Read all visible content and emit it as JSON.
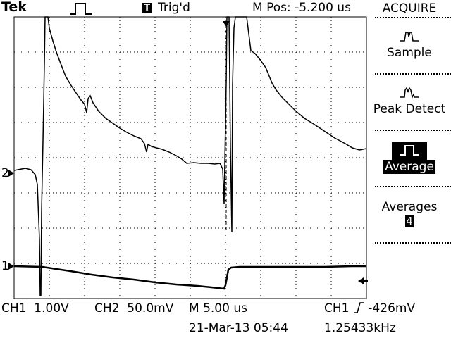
{
  "header": {
    "brand": "Tek",
    "trigger_status": "Trig'd",
    "trigger_box_glyph": "T",
    "horizontal_position": "M Pos: -5.200 us",
    "run_icon": "acquisition-square-wave-icon"
  },
  "menu": {
    "title": "ACQUIRE",
    "items": [
      {
        "label": "Sample",
        "icon": "sample-mode-icon",
        "selected": false
      },
      {
        "label": "Peak Detect",
        "icon": "peak-detect-icon",
        "selected": false
      },
      {
        "label": "Average",
        "icon": "average-mode-icon",
        "selected": true
      },
      {
        "label": "Averages",
        "value": "4",
        "selected": false
      }
    ]
  },
  "markers": {
    "ch1": "1",
    "ch2": "2",
    "trigger_level_icon": "trigger-level-arrow-icon",
    "trigger_position_icon": "trigger-position-arrow-icon"
  },
  "status": {
    "ch1_label": "CH1",
    "ch1_scale": "1.00V",
    "ch2_label": "CH2",
    "ch2_scale": "50.0mV",
    "time_label": "M",
    "time_scale": "5.00 us",
    "trigger_source": "CH1",
    "trigger_slope_icon": "rising-edge-icon",
    "trigger_level": "-426mV",
    "date_time": "21-Mar-13 05:44",
    "frequency": "1.25433kHz"
  },
  "colors": {
    "background": "#ffffff",
    "foreground": "#000000"
  }
}
